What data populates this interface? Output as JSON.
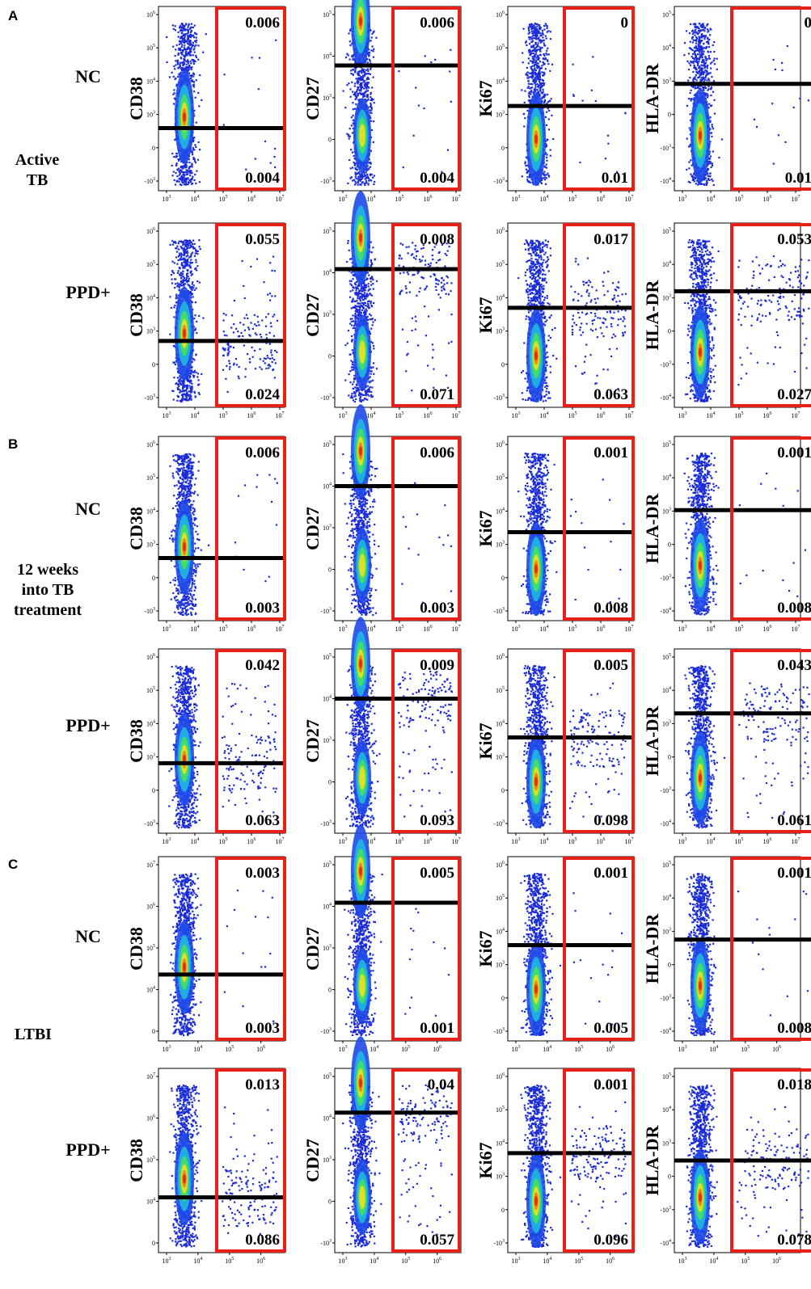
{
  "figure": {
    "sections": [
      {
        "letter": "A",
        "group_label": [
          "Active",
          "TB"
        ]
      },
      {
        "letter": "B",
        "group_label": [
          "12 weeks",
          "into TB",
          "treatment"
        ]
      },
      {
        "letter": "C",
        "group_label": [
          "LTBI"
        ]
      }
    ],
    "conditions": [
      "NC",
      "PPD+"
    ],
    "markers": [
      "CD38",
      "CD27",
      "Ki67",
      "HLA-DR"
    ]
  },
  "chart_data": {
    "type": "scatter",
    "description_of_panels": "flow cytometry density plots",
    "axis_ticks": {
      "x_standard": [
        "10^3",
        "10^4",
        "10^5",
        "10^6",
        "10^7"
      ],
      "x_ltbi": [
        "10^3",
        "10^4",
        "10^5",
        "10^6"
      ],
      "y_CD38": [
        "-10^3",
        "0",
        "10^3",
        "10^4",
        "10^5",
        "10^6"
      ],
      "y_CD38_ltbi": [
        "0",
        "10^4",
        "10^5",
        "10^6",
        "10^7"
      ],
      "y_CD27": [
        "-10^3",
        "0",
        "10^3",
        "10^4",
        "10^5"
      ],
      "y_Ki67": [
        "-10^3",
        "0",
        "10^3",
        "10^4",
        "10^5",
        "10^6"
      ],
      "y_HLA-DR": [
        "-10^4",
        "-10^3",
        "0",
        "10^3",
        "10^4",
        "10^5"
      ]
    },
    "panels": [
      {
        "section": "A",
        "condition": "NC",
        "marker": "CD38",
        "top": "0.006",
        "bottom": "0.004"
      },
      {
        "section": "A",
        "condition": "NC",
        "marker": "CD27",
        "top": "0.006",
        "bottom": "0.004"
      },
      {
        "section": "A",
        "condition": "NC",
        "marker": "Ki67",
        "top": "0",
        "bottom": "0.01"
      },
      {
        "section": "A",
        "condition": "NC",
        "marker": "HLA-DR",
        "top": "0",
        "bottom": "0.01"
      },
      {
        "section": "A",
        "condition": "PPD+",
        "marker": "CD38",
        "top": "0.055",
        "bottom": "0.024"
      },
      {
        "section": "A",
        "condition": "PPD+",
        "marker": "CD27",
        "top": "0.008",
        "bottom": "0.071"
      },
      {
        "section": "A",
        "condition": "PPD+",
        "marker": "Ki67",
        "top": "0.017",
        "bottom": "0.063"
      },
      {
        "section": "A",
        "condition": "PPD+",
        "marker": "HLA-DR",
        "top": "0.053",
        "bottom": "0.027"
      },
      {
        "section": "B",
        "condition": "NC",
        "marker": "CD38",
        "top": "0.006",
        "bottom": "0.003"
      },
      {
        "section": "B",
        "condition": "NC",
        "marker": "CD27",
        "top": "0.006",
        "bottom": "0.003"
      },
      {
        "section": "B",
        "condition": "NC",
        "marker": "Ki67",
        "top": "0.001",
        "bottom": "0.008"
      },
      {
        "section": "B",
        "condition": "NC",
        "marker": "HLA-DR",
        "top": "0.001",
        "bottom": "0.008"
      },
      {
        "section": "B",
        "condition": "PPD+",
        "marker": "CD38",
        "top": "0.042",
        "bottom": "0.063"
      },
      {
        "section": "B",
        "condition": "PPD+",
        "marker": "CD27",
        "top": "0.009",
        "bottom": "0.093"
      },
      {
        "section": "B",
        "condition": "PPD+",
        "marker": "Ki67",
        "top": "0.005",
        "bottom": "0.098"
      },
      {
        "section": "B",
        "condition": "PPD+",
        "marker": "HLA-DR",
        "top": "0.043",
        "bottom": "0.061"
      },
      {
        "section": "C",
        "condition": "NC",
        "marker": "CD38",
        "top": "0.003",
        "bottom": "0.003"
      },
      {
        "section": "C",
        "condition": "NC",
        "marker": "CD27",
        "top": "0.005",
        "bottom": "0.001"
      },
      {
        "section": "C",
        "condition": "NC",
        "marker": "Ki67",
        "top": "0.001",
        "bottom": "0.005"
      },
      {
        "section": "C",
        "condition": "NC",
        "marker": "HLA-DR",
        "top": "0.001",
        "bottom": "0.008"
      },
      {
        "section": "C",
        "condition": "PPD+",
        "marker": "CD38",
        "top": "0.013",
        "bottom": "0.086"
      },
      {
        "section": "C",
        "condition": "PPD+",
        "marker": "CD27",
        "top": "0.04",
        "bottom": "0.057"
      },
      {
        "section": "C",
        "condition": "PPD+",
        "marker": "Ki67",
        "top": "0.001",
        "bottom": "0.096"
      },
      {
        "section": "C",
        "condition": "PPD+",
        "marker": "HLA-DR",
        "top": "0.018",
        "bottom": "0.078"
      }
    ],
    "colors": {
      "gate": "#e8201c",
      "threshold": "#000000",
      "points": "#1a2bd8",
      "density_core": "#e02010"
    }
  }
}
